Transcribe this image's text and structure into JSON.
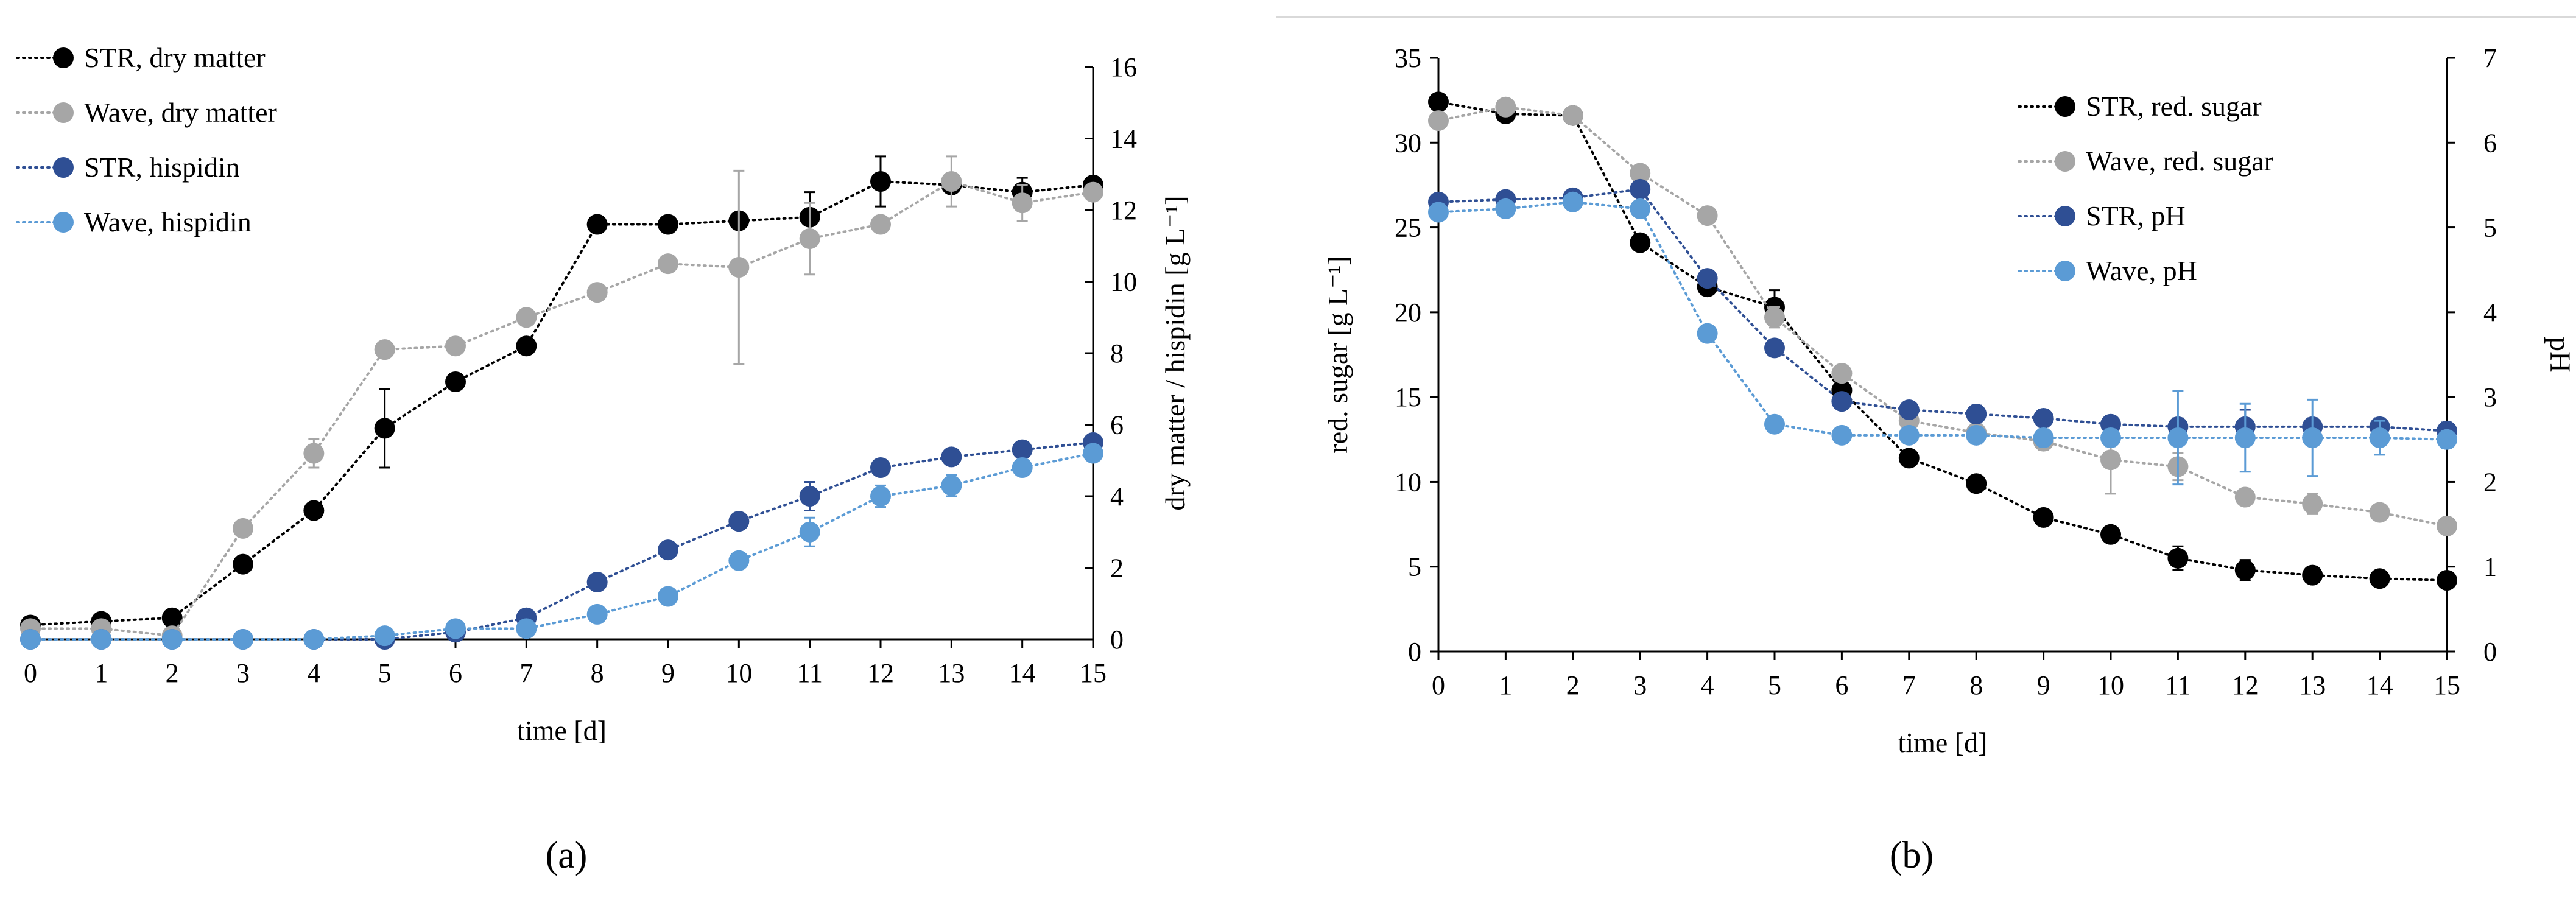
{
  "chart_data": [
    {
      "type": "line",
      "panel_label": "a",
      "panel_label_text": "(a)",
      "xlabel": "time [d]",
      "ylabel": "dry matter / hispidin [g L⁻¹]",
      "x": [
        0,
        1,
        2,
        3,
        4,
        5,
        6,
        7,
        8,
        9,
        10,
        11,
        12,
        13,
        14,
        15
      ],
      "xlim": [
        0,
        15
      ],
      "ylim": [
        0,
        16
      ],
      "yticks": [
        0,
        2,
        4,
        6,
        8,
        10,
        12,
        14,
        16
      ],
      "legend_position": "top-left",
      "series": [
        {
          "name": "STR, dry matter",
          "color": "#000000",
          "values": [
            0.4,
            0.5,
            0.6,
            2.1,
            3.6,
            5.9,
            7.2,
            8.2,
            11.6,
            11.6,
            11.7,
            11.8,
            12.8,
            12.7,
            12.5,
            12.7
          ],
          "errors": [
            0,
            0,
            0,
            0.1,
            0.1,
            1.1,
            0.1,
            0.1,
            0,
            0.1,
            0.2,
            0.7,
            0.7,
            0.2,
            0.4,
            0.1
          ]
        },
        {
          "name": "Wave, dry matter",
          "color": "#a6a6a6",
          "values": [
            0.3,
            0.3,
            0.1,
            3.1,
            5.2,
            8.1,
            8.2,
            9.0,
            9.7,
            10.5,
            10.4,
            11.2,
            11.6,
            12.8,
            12.2,
            12.5
          ],
          "errors": [
            0,
            0,
            0,
            0.1,
            0.4,
            0.1,
            0.1,
            0.1,
            0,
            0.1,
            2.7,
            1.0,
            0.1,
            0.7,
            0.5,
            0.1
          ]
        },
        {
          "name": "STR, hispidin",
          "color": "#2f4f94",
          "values": [
            0,
            0,
            0,
            0,
            0,
            0,
            0.2,
            0.6,
            1.6,
            2.5,
            3.3,
            4.0,
            4.8,
            5.1,
            5.3,
            5.5
          ],
          "errors": [
            0,
            0,
            0,
            0,
            0,
            0,
            0,
            0,
            0,
            0,
            0.1,
            0.4,
            0.2,
            0.2,
            0.2,
            0.2
          ]
        },
        {
          "name": "Wave, hispidin",
          "color": "#5b9bd5",
          "values": [
            0,
            0,
            0,
            0,
            0,
            0.1,
            0.3,
            0.3,
            0.7,
            1.2,
            2.2,
            3.0,
            4.0,
            4.3,
            4.8,
            5.2
          ],
          "errors": [
            0,
            0,
            0,
            0,
            0,
            0,
            0,
            0,
            0,
            0,
            0.1,
            0.4,
            0.3,
            0.3,
            0.2,
            0.1
          ]
        }
      ]
    },
    {
      "type": "line",
      "panel_label": "b",
      "panel_label_text": "(b)",
      "xlabel": "time [d]",
      "ylabel": "red. sugar [g L⁻¹]",
      "y2label": "pH",
      "x": [
        0,
        1,
        2,
        3,
        4,
        5,
        6,
        7,
        8,
        9,
        10,
        11,
        12,
        13,
        14,
        15
      ],
      "xlim": [
        0,
        15
      ],
      "ylim": [
        0,
        35
      ],
      "yticks": [
        0,
        5,
        10,
        15,
        20,
        25,
        30,
        35
      ],
      "y2lim": [
        0,
        7
      ],
      "y2ticks": [
        0,
        1,
        2,
        3,
        4,
        5,
        6,
        7
      ],
      "legend_position": "top-right",
      "series": [
        {
          "name": "STR, red. sugar",
          "axis": "left",
          "color": "#000000",
          "values": [
            32.4,
            31.7,
            31.6,
            24.1,
            21.5,
            20.3,
            15.4,
            11.4,
            9.9,
            7.9,
            6.9,
            5.5,
            4.8,
            4.5,
            4.3,
            4.2
          ],
          "errors": [
            0,
            0,
            0,
            0,
            0.3,
            1.0,
            0.5,
            0.3,
            0.2,
            0.2,
            0.2,
            0.7,
            0.6,
            0.3,
            0.3,
            0.4
          ]
        },
        {
          "name": "Wave, red. sugar",
          "axis": "left",
          "color": "#a6a6a6",
          "values": [
            31.3,
            32.1,
            31.6,
            28.2,
            25.7,
            19.7,
            16.4,
            13.6,
            12.9,
            12.4,
            11.3,
            10.9,
            9.1,
            8.7,
            8.2,
            7.4
          ],
          "errors": [
            0,
            0,
            0,
            0,
            0.2,
            0.6,
            0.4,
            0.3,
            0.3,
            0.5,
            2.0,
            0.8,
            0.4,
            0.6,
            0.3,
            0.2
          ]
        },
        {
          "name": "STR, pH",
          "axis": "right",
          "color": "#2f4f94",
          "values": [
            5.3,
            5.33,
            5.35,
            5.45,
            4.4,
            3.58,
            2.95,
            2.85,
            2.8,
            2.75,
            2.68,
            2.65,
            2.65,
            2.65,
            2.65,
            2.6
          ],
          "errors": [
            0,
            0,
            0,
            0,
            0,
            0,
            0,
            0,
            0.1,
            0.1,
            0.1,
            0.1,
            0.2,
            0.1,
            0.1,
            0.1
          ]
        },
        {
          "name": "Wave, pH",
          "axis": "right",
          "color": "#5b9bd5",
          "values": [
            5.18,
            5.22,
            5.3,
            5.22,
            3.75,
            2.68,
            2.55,
            2.55,
            2.55,
            2.52,
            2.52,
            2.52,
            2.52,
            2.52,
            2.52,
            2.5
          ],
          "errors": [
            0,
            0,
            0,
            0,
            0,
            0,
            0,
            0,
            0.1,
            0.1,
            0.1,
            0.55,
            0.4,
            0.45,
            0.2,
            0.1
          ]
        }
      ]
    }
  ]
}
